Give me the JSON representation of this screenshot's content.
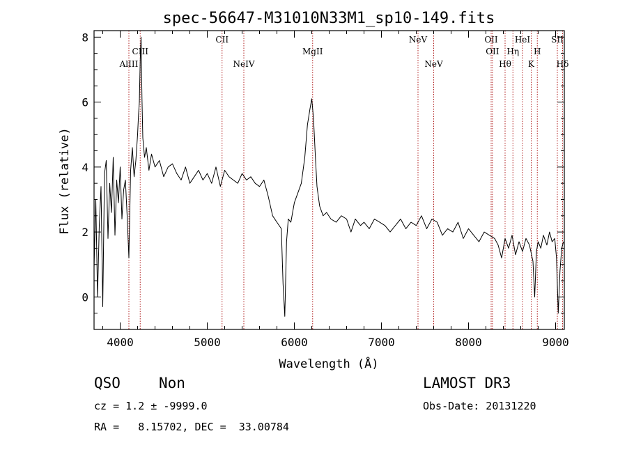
{
  "chart_data": {
    "type": "line",
    "title": "spec-56647-M31010N33M1_sp10-149.fits",
    "xlabel": "Wavelength (Å)",
    "ylabel": "Flux (relative)",
    "xlim": [
      3700,
      9100
    ],
    "ylim": [
      -1.0,
      8.2
    ],
    "xticks": [
      4000,
      5000,
      6000,
      7000,
      8000,
      9000
    ],
    "yticks": [
      0,
      2,
      4,
      6,
      8
    ],
    "grid": false,
    "spectral_lines": [
      {
        "name": "AlIII",
        "wavelength": 4100,
        "row": 3
      },
      {
        "name": "CIII",
        "wavelength": 4230,
        "row": 2
      },
      {
        "name": "CII",
        "wavelength": 5170,
        "row": 1
      },
      {
        "name": "NeIV",
        "wavelength": 5420,
        "row": 3
      },
      {
        "name": "MgII",
        "wavelength": 6210,
        "row": 2
      },
      {
        "name": "NeV",
        "wavelength": 7420,
        "row": 1
      },
      {
        "name": "NeV",
        "wavelength": 7600,
        "row": 3
      },
      {
        "name": "OII",
        "wavelength": 8260,
        "row": 1
      },
      {
        "name": "OII",
        "wavelength": 8275,
        "row": 2
      },
      {
        "name": "Hθ",
        "wavelength": 8420,
        "row": 3
      },
      {
        "name": "Hη",
        "wavelength": 8510,
        "row": 2
      },
      {
        "name": "HeI",
        "wavelength": 8620,
        "row": 1
      },
      {
        "name": "K",
        "wavelength": 8720,
        "row": 3
      },
      {
        "name": "H",
        "wavelength": 8790,
        "row": 2
      },
      {
        "name": "SII",
        "wavelength": 9020,
        "row": 1
      },
      {
        "name": "Hδ",
        "wavelength": 9080,
        "row": 3
      }
    ],
    "series": [
      {
        "color": "#000000",
        "x": [
          3700,
          3720,
          3740,
          3760,
          3780,
          3800,
          3820,
          3840,
          3860,
          3880,
          3900,
          3920,
          3940,
          3960,
          3980,
          4000,
          4020,
          4040,
          4060,
          4080,
          4100,
          4120,
          4140,
          4160,
          4180,
          4200,
          4210,
          4220,
          4230,
          4240,
          4250,
          4260,
          4280,
          4300,
          4330,
          4360,
          4400,
          4450,
          4500,
          4550,
          4600,
          4650,
          4700,
          4750,
          4800,
          4850,
          4900,
          4950,
          5000,
          5050,
          5100,
          5150,
          5200,
          5250,
          5300,
          5350,
          5400,
          5450,
          5500,
          5550,
          5600,
          5650,
          5700,
          5750,
          5800,
          5850,
          5870,
          5890,
          5910,
          5930,
          5960,
          6000,
          6040,
          6080,
          6120,
          6150,
          6180,
          6200,
          6220,
          6240,
          6260,
          6290,
          6330,
          6370,
          6420,
          6480,
          6540,
          6600,
          6650,
          6700,
          6760,
          6800,
          6860,
          6920,
          6980,
          7040,
          7100,
          7160,
          7220,
          7280,
          7340,
          7400,
          7460,
          7520,
          7580,
          7640,
          7700,
          7760,
          7820,
          7880,
          7940,
          8000,
          8060,
          8120,
          8180,
          8240,
          8300,
          8340,
          8380,
          8420,
          8460,
          8500,
          8540,
          8580,
          8620,
          8660,
          8700,
          8740,
          8760,
          8780,
          8800,
          8830,
          8860,
          8900,
          8930,
          8960,
          8990,
          9010,
          9030,
          9050,
          9070,
          9090
        ],
        "y": [
          0.9,
          3.0,
          0.0,
          2.2,
          3.4,
          -0.3,
          3.8,
          4.2,
          1.8,
          3.5,
          2.6,
          4.3,
          1.9,
          3.6,
          2.9,
          4.0,
          2.4,
          3.3,
          3.6,
          2.5,
          1.2,
          3.9,
          4.6,
          3.7,
          4.2,
          5.0,
          5.6,
          6.0,
          7.3,
          8.0,
          6.1,
          4.9,
          4.3,
          4.6,
          3.9,
          4.4,
          4.0,
          4.2,
          3.7,
          4.0,
          4.1,
          3.8,
          3.6,
          4.0,
          3.5,
          3.7,
          3.9,
          3.6,
          3.8,
          3.5,
          4.0,
          3.4,
          3.9,
          3.7,
          3.6,
          3.5,
          3.8,
          3.6,
          3.7,
          3.5,
          3.4,
          3.6,
          3.1,
          2.5,
          2.3,
          2.1,
          0.4,
          -0.6,
          1.7,
          2.4,
          2.3,
          2.9,
          3.2,
          3.5,
          4.3,
          5.3,
          5.8,
          6.1,
          5.5,
          4.4,
          3.4,
          2.8,
          2.5,
          2.6,
          2.4,
          2.3,
          2.5,
          2.4,
          2.0,
          2.4,
          2.2,
          2.3,
          2.1,
          2.4,
          2.3,
          2.2,
          2.0,
          2.2,
          2.4,
          2.1,
          2.3,
          2.2,
          2.5,
          2.1,
          2.4,
          2.3,
          1.9,
          2.1,
          2.0,
          2.3,
          1.8,
          2.1,
          1.9,
          1.7,
          2.0,
          1.9,
          1.8,
          1.6,
          1.2,
          1.8,
          1.5,
          1.9,
          1.3,
          1.7,
          1.4,
          1.8,
          1.6,
          1.1,
          0.0,
          1.4,
          1.7,
          1.5,
          1.9,
          1.6,
          2.0,
          1.7,
          1.8,
          1.2,
          -0.5,
          0.8,
          1.5,
          1.7
        ]
      }
    ]
  },
  "info": {
    "obj_class": "QSO",
    "subclass": "Non",
    "cz_line": "cz = 1.2 ± -9999.0",
    "radec_line": "RA =   8.15702, DEC =  33.00784",
    "survey": "LAMOST DR3",
    "obs_date": "Obs-Date: 20131220"
  }
}
